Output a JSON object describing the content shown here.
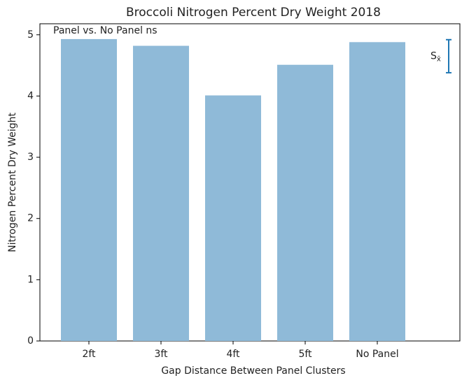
{
  "chart_data": {
    "type": "bar",
    "title": "Broccoli Nitrogen Percent Dry Weight 2018",
    "xlabel": "Gap Distance Between Panel Clusters",
    "ylabel": "Nitrogen Percent Dry Weight",
    "annotation": "Panel vs. No Panel ns",
    "categories": [
      "2ft",
      "3ft",
      "4ft",
      "5ft",
      "No Panel"
    ],
    "values": [
      4.93,
      4.82,
      4.01,
      4.51,
      4.88
    ],
    "color": "#8fbad8",
    "ylim": [
      0,
      5.18
    ],
    "yticks": [
      0,
      1,
      2,
      3,
      4,
      5
    ],
    "error_bar": {
      "label": "S",
      "label_sub": "x̄",
      "center": 4.65,
      "error": 0.27,
      "color": "#1f77b4"
    }
  }
}
